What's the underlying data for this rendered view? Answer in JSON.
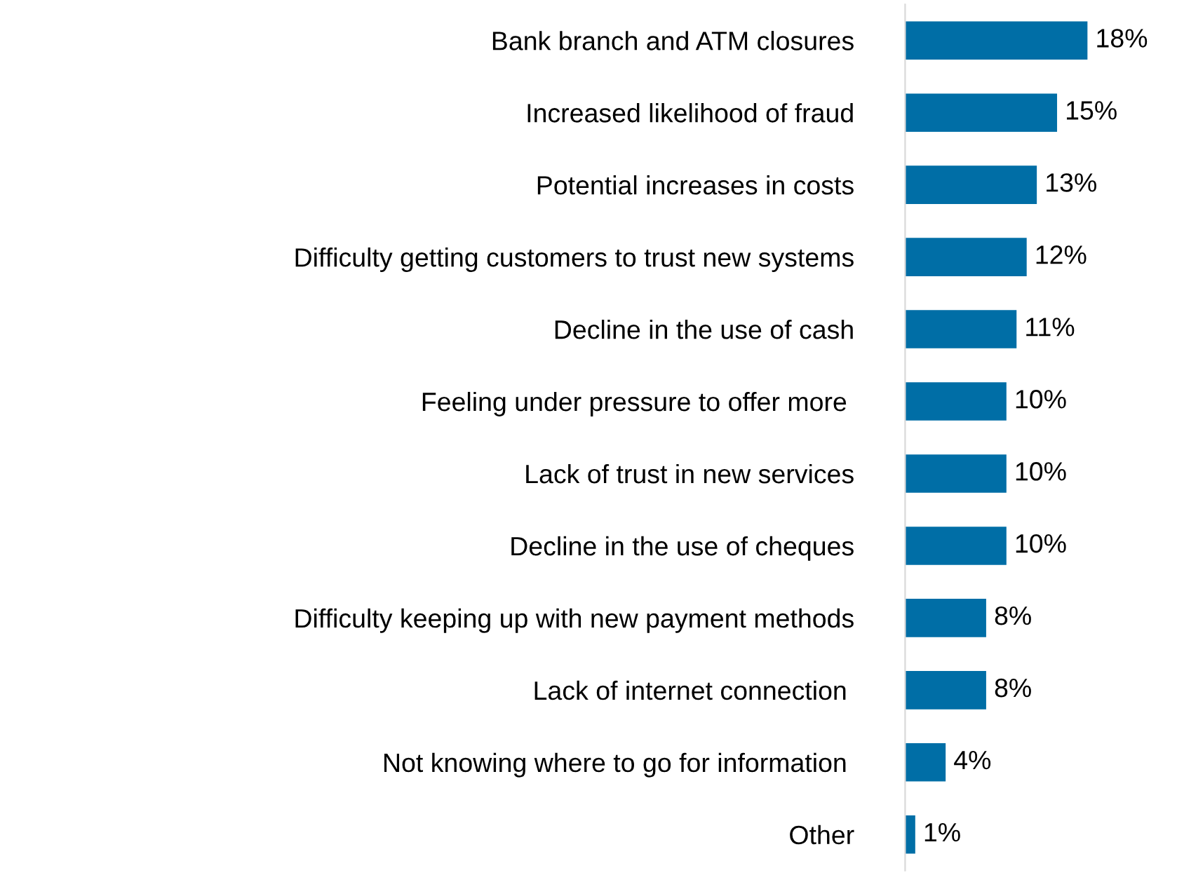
{
  "chart_data": {
    "type": "bar",
    "orientation": "horizontal",
    "categories": [
      "Bank branch and ATM closures",
      "Increased likelihood of fraud",
      "Potential increases in costs",
      "Difficulty getting customers to trust new systems",
      "Decline in the use of cash",
      "Feeling under pressure to offer more ",
      "Lack of trust in new services",
      "Decline in the use of cheques",
      "Difficulty keeping up with new payment methods",
      "Lack of internet connection ",
      "Not knowing where to go for information ",
      "Other"
    ],
    "values": [
      18,
      15,
      13,
      12,
      11,
      10,
      10,
      10,
      8,
      8,
      4,
      1
    ],
    "value_labels": [
      "18%",
      "15%",
      "13%",
      "12%",
      "11%",
      "10%",
      "10%",
      "10%",
      "8%",
      "8%",
      "4%",
      "1%"
    ],
    "color": "#006ea6",
    "tick_labels": "y",
    "grid": false,
    "legend": false
  }
}
